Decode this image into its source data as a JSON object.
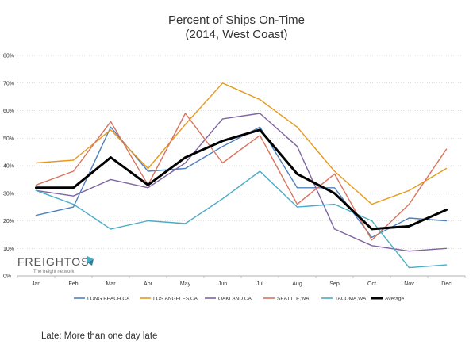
{
  "chart_data": {
    "type": "line",
    "title": [
      "Percent of Ships On-Time",
      "(2014, West Coast)"
    ],
    "xlabel": "",
    "ylabel": "",
    "categories": [
      "Jan",
      "Feb",
      "Mar",
      "Apr",
      "May",
      "Jun",
      "Jul",
      "Aug",
      "Sep",
      "Oct",
      "Nov",
      "Dec"
    ],
    "y_ticks": [
      "0%",
      "10%",
      "20%",
      "30%",
      "40%",
      "50%",
      "60%",
      "70%",
      "80%"
    ],
    "ylim": [
      0,
      80
    ],
    "grid": "horizontal-dotted",
    "legend_position": "bottom",
    "series": [
      {
        "name": "LONG BEACH,CA",
        "color": "#4f81bd",
        "values": [
          22,
          25,
          54,
          38,
          39,
          47,
          54,
          32,
          32,
          14,
          21,
          20
        ]
      },
      {
        "name": "LOS ANGELES,CA",
        "color": "#e8991c",
        "values": [
          41,
          42,
          53,
          39,
          55,
          70,
          64,
          54,
          38,
          26,
          31,
          39
        ]
      },
      {
        "name": "OAKLAND,CA",
        "color": "#8064a2",
        "values": [
          31,
          29,
          35,
          32,
          41,
          57,
          59,
          47,
          17,
          11,
          9,
          10
        ]
      },
      {
        "name": "SEATTLE,WA",
        "color": "#d9735d",
        "values": [
          33,
          38,
          56,
          33,
          59,
          41,
          51,
          26,
          37,
          13,
          26,
          46
        ]
      },
      {
        "name": "TACOMA,WA",
        "color": "#4bacc6",
        "values": [
          31,
          26,
          17,
          20,
          19,
          28,
          38,
          25,
          26,
          20,
          3,
          4
        ]
      },
      {
        "name": "Average",
        "color": "#000000",
        "bold": true,
        "values": [
          32,
          32,
          43,
          33,
          43,
          49,
          53,
          37,
          30,
          17,
          18,
          24
        ]
      }
    ]
  },
  "logo": {
    "name": "FREIGHTOS",
    "tagline": "The freight network"
  },
  "footnote": "Late: More than one day late"
}
